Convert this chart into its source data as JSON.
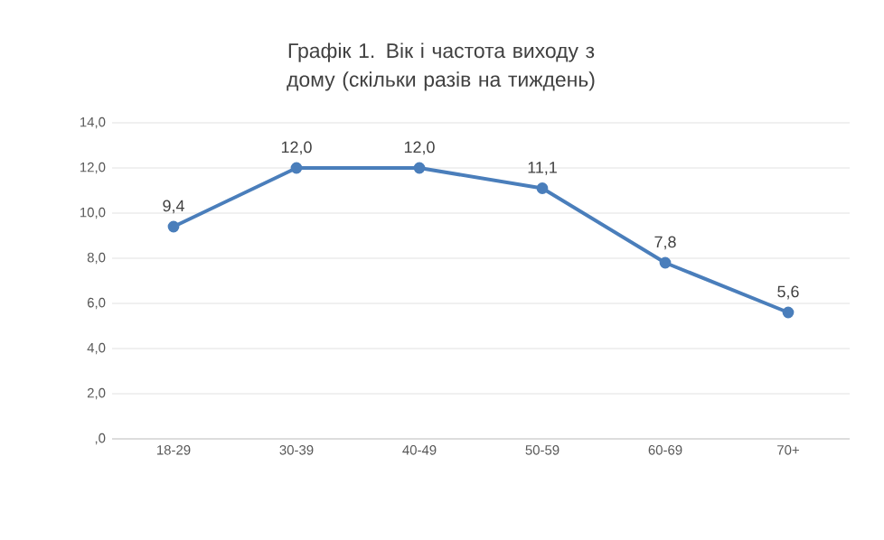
{
  "chart_data": {
    "type": "line",
    "title": "Графік 1. Вік і частота виходу з дому (скільки разів на тиждень)",
    "categories": [
      "18-29",
      "30-39",
      "40-49",
      "50-59",
      "60-69",
      "70+"
    ],
    "series": [
      {
        "color": "#4a7ebb",
        "values": [
          9.4,
          12.0,
          12.0,
          11.1,
          7.8,
          5.6
        ],
        "value_labels": [
          "9,4",
          "12,0",
          "12,0",
          "11,1",
          "7,8",
          "5,6"
        ]
      }
    ],
    "ylim": [
      0,
      14
    ],
    "yticks": [
      {
        "value": 0,
        "label": ",0"
      },
      {
        "value": 2,
        "label": "2,0"
      },
      {
        "value": 4,
        "label": "4,0"
      },
      {
        "value": 6,
        "label": "6,0"
      },
      {
        "value": 8,
        "label": "8,0"
      },
      {
        "value": 10,
        "label": "10,0"
      },
      {
        "value": 12,
        "label": "12,0"
      },
      {
        "value": 14,
        "label": "14,0"
      }
    ],
    "grid": "y",
    "marker": "circle",
    "line_style": "solid"
  }
}
